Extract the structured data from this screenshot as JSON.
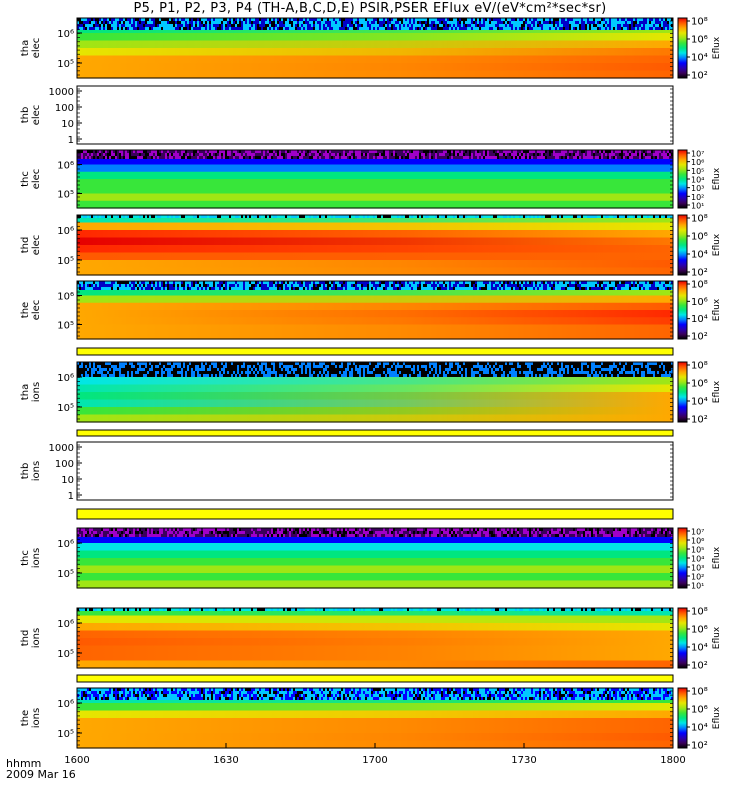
{
  "title": "P5, P1, P2, P3, P4 (TH-A,B,C,D,E) PSIR,PSER EFlux eV/(eV*cm²*sec*sr)",
  "footer": {
    "label": "hhmm",
    "date": "2009 Mar 16"
  },
  "chart_data": {
    "type": "heatmap",
    "xlabel": "hhmm",
    "x_ticks": [
      "1600",
      "1630",
      "1700",
      "1730",
      "1800"
    ],
    "grid": false,
    "legend": "right colorbars",
    "colormap": [
      "#000000",
      "#3a005a",
      "#2800b4",
      "#0000ff",
      "#0080ff",
      "#00e6e6",
      "#00e680",
      "#38e63a",
      "#a0e614",
      "#e6e600",
      "#ffa800",
      "#ff5a00",
      "#e60000"
    ],
    "panels": [
      {
        "id": "tha-elec",
        "label_top": "tha",
        "label_bot": "elec",
        "empty": false,
        "y_ticks": [
          "10⁶",
          "10⁵"
        ],
        "cb_ticks": [
          "10⁸",
          "10⁶",
          "10⁴",
          "10²"
        ],
        "cb_label": "Eflux",
        "speckle_rows": 4,
        "speckle_band": [
          "#0000c8",
          "#00c8ff"
        ],
        "rows": [
          [
            "#00e6e6",
            "#00e6b0"
          ],
          [
            "#00e680",
            "#a0e614"
          ],
          [
            "#38e63a",
            "#e6e600"
          ],
          [
            "#a0e614",
            "#ffa800"
          ],
          [
            "#e6e600",
            "#ff7800"
          ],
          [
            "#ffa800",
            "#ff6400"
          ],
          [
            "#ffa800",
            "#ff5a00"
          ],
          [
            "#ffa800",
            "#ff6400"
          ]
        ]
      },
      {
        "id": "thb-elec",
        "label_top": "thb",
        "label_bot": "elec",
        "empty": true,
        "y_ticks": [
          "1000",
          "100",
          "10",
          "1"
        ]
      },
      {
        "id": "thc-elec",
        "label_top": "thc",
        "label_bot": "elec",
        "empty": false,
        "y_ticks": [
          "10⁶",
          "10⁵"
        ],
        "cb_ticks": [
          "10⁷",
          "10⁶",
          "10⁵",
          "10⁴",
          "10³",
          "10²",
          "10¹"
        ],
        "cb_label": "Eflux",
        "speckle_rows": 3,
        "speckle_band": [
          "#3a005a",
          "#a000c8"
        ],
        "rows": [
          [
            "#00e6e6",
            "#00e6e6"
          ],
          [
            "#0000ff",
            "#0000ff"
          ],
          [
            "#0080ff",
            "#0080ff"
          ],
          [
            "#00e680",
            "#00e680"
          ],
          [
            "#38e63a",
            "#38e63a"
          ],
          [
            "#38e63a",
            "#38e63a"
          ],
          [
            "#a0e614",
            "#a0e614"
          ],
          [
            "#38e63a",
            "#38e63a"
          ]
        ]
      },
      {
        "id": "thd-elec",
        "label_top": "thd",
        "label_bot": "elec",
        "empty": false,
        "y_ticks": [
          "10⁶",
          "10⁵"
        ],
        "cb_ticks": [
          "10⁸",
          "10⁶",
          "10⁴",
          "10²"
        ],
        "cb_label": "Eflux",
        "speckle_rows": 1,
        "speckle_band": [
          "#00c8ff",
          "#00e6e6"
        ],
        "rows": [
          [
            "#00e6b0",
            "#a0e614"
          ],
          [
            "#ffa800",
            "#e6e600"
          ],
          [
            "#ff2800",
            "#ffa800"
          ],
          [
            "#e60000",
            "#ff7800"
          ],
          [
            "#ff2800",
            "#ff6400"
          ],
          [
            "#ff5a00",
            "#ff6400"
          ],
          [
            "#ffa800",
            "#ff5a00"
          ],
          [
            "#ffa800",
            "#ff6400"
          ]
        ]
      },
      {
        "id": "the-elec",
        "label_top": "the",
        "label_bot": "elec",
        "empty": false,
        "y_ticks": [
          "10⁶",
          "10⁵"
        ],
        "cb_ticks": [
          "10⁸",
          "10⁶",
          "10⁴",
          "10²"
        ],
        "cb_label": "Eflux",
        "speckle_rows": 3,
        "speckle_band": [
          "#0000c8",
          "#00c8ff"
        ],
        "rows": [
          [
            "#00e6e6",
            "#00e6b0"
          ],
          [
            "#00e680",
            "#a0e614"
          ],
          [
            "#a0e614",
            "#ffa800"
          ],
          [
            "#ffa800",
            "#ff5a00"
          ],
          [
            "#ffa800",
            "#ff2800"
          ],
          [
            "#ffa800",
            "#ff3c00"
          ],
          [
            "#ffa800",
            "#ff6400"
          ],
          [
            "#ffa800",
            "#ff6400"
          ]
        ]
      },
      {
        "id": "tha-ions",
        "label_top": "tha",
        "label_bot": "ions",
        "empty": false,
        "y_ticks": [
          "10⁶",
          "10⁵"
        ],
        "cb_ticks": [
          "10⁸",
          "10⁶",
          "10⁴",
          "10²"
        ],
        "cb_label": "Eflux",
        "speckle_rows": 5,
        "speckle_band": [
          "#000000",
          "#0080ff"
        ],
        "rows": [
          [
            "#0080ff",
            "#00e6e6"
          ],
          [
            "#00c8ff",
            "#00e680"
          ],
          [
            "#00e6e6",
            "#a0e614"
          ],
          [
            "#00e6b0",
            "#e6e600"
          ],
          [
            "#00e680",
            "#ffa800"
          ],
          [
            "#00e6b0",
            "#ffa800"
          ],
          [
            "#38e63a",
            "#ffa800"
          ],
          [
            "#a0e614",
            "#ffa800"
          ]
        ]
      },
      {
        "id": "thb-ions",
        "label_top": "thb",
        "label_bot": "ions",
        "empty": true,
        "y_ticks": [
          "1000",
          "100",
          "10",
          "1"
        ]
      },
      {
        "id": "thc-ions",
        "label_top": "thc",
        "label_bot": "ions",
        "empty": false,
        "y_ticks": [
          "10⁶",
          "10⁵"
        ],
        "cb_ticks": [
          "10⁷",
          "10⁶",
          "10⁵",
          "10⁴",
          "10³",
          "10²",
          "10¹"
        ],
        "cb_label": "Eflux",
        "speckle_rows": 3,
        "speckle_band": [
          "#3a005a",
          "#a000c8"
        ],
        "rows": [
          [
            "#00c8ff",
            "#00c8ff"
          ],
          [
            "#0000ff",
            "#0000ff"
          ],
          [
            "#00e6e6",
            "#00e6e6"
          ],
          [
            "#00e680",
            "#00e680"
          ],
          [
            "#38e63a",
            "#38e63a"
          ],
          [
            "#a0e614",
            "#a0e614"
          ],
          [
            "#38e63a",
            "#38e63a"
          ],
          [
            "#a0e614",
            "#a0e614"
          ]
        ]
      },
      {
        "id": "thd-ions",
        "label_top": "thd",
        "label_bot": "ions",
        "empty": false,
        "y_ticks": [
          "10⁶",
          "10⁵"
        ],
        "cb_ticks": [
          "10⁸",
          "10⁶",
          "10⁴",
          "10²"
        ],
        "cb_label": "Eflux",
        "speckle_rows": 1,
        "speckle_band": [
          "#00c8ff",
          "#00e6e6"
        ],
        "rows": [
          [
            "#38e63a",
            "#00e6b0"
          ],
          [
            "#e6e600",
            "#a0e614"
          ],
          [
            "#ffa800",
            "#e6e600"
          ],
          [
            "#ff6400",
            "#ffa800"
          ],
          [
            "#ff5a00",
            "#ffa800"
          ],
          [
            "#ff6400",
            "#ffa800"
          ],
          [
            "#ff6400",
            "#ffa800"
          ],
          [
            "#ffa800",
            "#ff6400"
          ]
        ]
      },
      {
        "id": "the-ions",
        "label_top": "the",
        "label_bot": "ions",
        "empty": false,
        "y_ticks": [
          "10⁶",
          "10⁵"
        ],
        "cb_ticks": [
          "10⁸",
          "10⁶",
          "10⁴",
          "10²"
        ],
        "cb_label": "Eflux",
        "speckle_rows": 4,
        "speckle_band": [
          "#0000ff",
          "#00c8ff"
        ],
        "rows": [
          [
            "#00c8ff",
            "#00e6e6"
          ],
          [
            "#00e6b0",
            "#38e63a"
          ],
          [
            "#38e63a",
            "#e6e600"
          ],
          [
            "#e6e600",
            "#ffa800"
          ],
          [
            "#ffa800",
            "#ff6400"
          ],
          [
            "#ffa800",
            "#ff6400"
          ],
          [
            "#ffa800",
            "#ff5a00"
          ],
          [
            "#ffa800",
            "#ff6400"
          ]
        ]
      }
    ]
  }
}
